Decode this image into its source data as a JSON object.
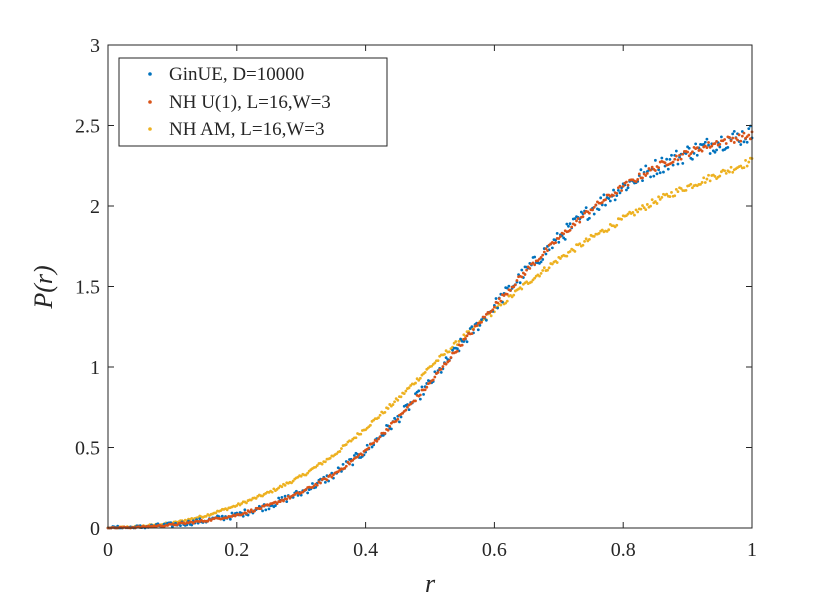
{
  "chart_data": {
    "type": "scatter",
    "title": "",
    "xlabel": "r",
    "ylabel": "P(r)",
    "xlim": [
      0,
      1
    ],
    "ylim": [
      0,
      3
    ],
    "x_ticks": [
      0,
      0.2,
      0.4,
      0.6,
      0.8,
      1
    ],
    "x_tick_labels": [
      "0",
      "0.2",
      "0.4",
      "0.6",
      "0.8",
      "1"
    ],
    "y_ticks": [
      0,
      0.5,
      1,
      1.5,
      2,
      2.5,
      3
    ],
    "y_tick_labels": [
      "0",
      "0.5",
      "1",
      "1.5",
      "2",
      "2.5",
      "3"
    ],
    "grid": false,
    "legend_position": "top-left",
    "series": [
      {
        "name": "GinUE, D=10000",
        "color": "#0072BD",
        "x": [
          0.0,
          0.05,
          0.1,
          0.15,
          0.2,
          0.25,
          0.3,
          0.35,
          0.4,
          0.45,
          0.5,
          0.55,
          0.6,
          0.65,
          0.7,
          0.75,
          0.8,
          0.85,
          0.9,
          0.95,
          1.0
        ],
        "y": [
          0.0,
          0.005,
          0.02,
          0.045,
          0.08,
          0.14,
          0.22,
          0.33,
          0.48,
          0.68,
          0.9,
          1.15,
          1.38,
          1.6,
          1.8,
          1.98,
          2.12,
          2.24,
          2.33,
          2.4,
          2.45
        ],
        "noise": 0.05
      },
      {
        "name": "NH U(1), L=16,W=3",
        "color": "#D95319",
        "x": [
          0.0,
          0.05,
          0.1,
          0.15,
          0.2,
          0.25,
          0.3,
          0.35,
          0.4,
          0.45,
          0.5,
          0.55,
          0.6,
          0.65,
          0.7,
          0.75,
          0.8,
          0.85,
          0.9,
          0.95,
          1.0
        ],
        "y": [
          0.0,
          0.005,
          0.02,
          0.045,
          0.08,
          0.14,
          0.22,
          0.33,
          0.48,
          0.68,
          0.9,
          1.15,
          1.38,
          1.6,
          1.8,
          1.98,
          2.12,
          2.24,
          2.33,
          2.4,
          2.44
        ],
        "noise": 0.02
      },
      {
        "name": "NH AM, L=16,W=3",
        "color": "#EDB120",
        "x": [
          0.0,
          0.05,
          0.1,
          0.15,
          0.2,
          0.25,
          0.3,
          0.35,
          0.4,
          0.45,
          0.5,
          0.55,
          0.6,
          0.65,
          0.7,
          0.75,
          0.8,
          0.85,
          0.9,
          0.95,
          1.0
        ],
        "y": [
          0.0,
          0.01,
          0.03,
          0.075,
          0.14,
          0.22,
          0.32,
          0.45,
          0.62,
          0.8,
          1.0,
          1.18,
          1.35,
          1.52,
          1.67,
          1.8,
          1.92,
          2.03,
          2.12,
          2.2,
          2.28
        ],
        "noise": 0.02
      }
    ]
  }
}
